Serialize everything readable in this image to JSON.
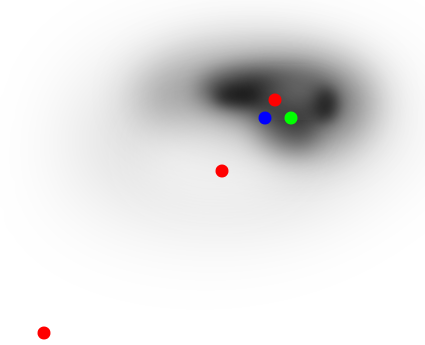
{
  "image": {
    "background_color": "#ffffff",
    "blob_color": "#000000"
  },
  "markers": [
    {
      "name": "red-marker-top",
      "color": "#ff0000"
    },
    {
      "name": "blue-marker",
      "color": "#0000ff"
    },
    {
      "name": "green-marker",
      "color": "#00ff00"
    },
    {
      "name": "red-marker-center",
      "color": "#ff0000"
    },
    {
      "name": "red-marker-bottom-left",
      "color": "#ff0000"
    }
  ]
}
